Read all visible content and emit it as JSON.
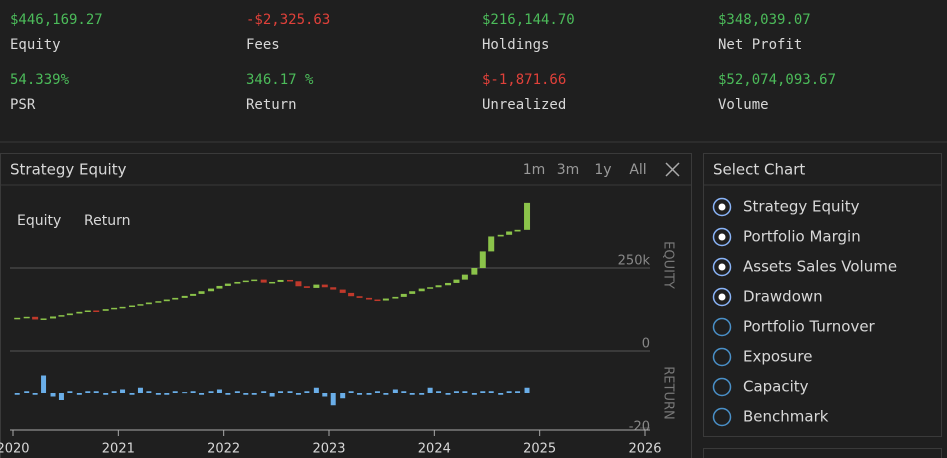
{
  "stats": [
    {
      "value": "$446,169.27",
      "label": "Equity",
      "color": "#4cbb5a"
    },
    {
      "value": "-$2,325.63",
      "label": "Fees",
      "color": "#e0413a"
    },
    {
      "value": "$216,144.70",
      "label": "Holdings",
      "color": "#4cbb5a"
    },
    {
      "value": "$348,039.07",
      "label": "Net Profit",
      "color": "#4cbb5a"
    },
    {
      "value": "54.339%",
      "label": "PSR",
      "color": "#4cbb5a"
    },
    {
      "value": "346.17 %",
      "label": "Return",
      "color": "#4cbb5a"
    },
    {
      "value": "$-1,871.66",
      "label": "Unrealized",
      "color": "#e0413a"
    },
    {
      "value": "$52,074,093.67",
      "label": "Volume",
      "color": "#4cbb5a"
    }
  ],
  "chart_data": {
    "type": "candlestick",
    "title": "Strategy Equity",
    "range_buttons": [
      "1m",
      "3m",
      "1y",
      "All"
    ],
    "x": [
      2020.04,
      2020.13,
      2020.21,
      2020.29,
      2020.38,
      2020.46,
      2020.54,
      2020.63,
      2020.71,
      2020.79,
      2020.88,
      2020.96,
      2021.04,
      2021.13,
      2021.21,
      2021.29,
      2021.38,
      2021.46,
      2021.54,
      2021.63,
      2021.71,
      2021.79,
      2021.88,
      2021.96,
      2022.04,
      2022.13,
      2022.21,
      2022.29,
      2022.38,
      2022.46,
      2022.54,
      2022.63,
      2022.71,
      2022.79,
      2022.88,
      2022.96,
      2023.04,
      2023.13,
      2023.21,
      2023.29,
      2023.38,
      2023.46,
      2023.54,
      2023.63,
      2023.71,
      2023.79,
      2023.88,
      2023.96,
      2024.04,
      2024.13,
      2024.21,
      2024.29,
      2024.38,
      2024.46,
      2024.54,
      2024.63,
      2024.71,
      2024.79,
      2024.88
    ],
    "xlim": [
      2020,
      2026
    ],
    "xticks": [
      2020,
      2021,
      2022,
      2023,
      2024,
      2025,
      2026
    ],
    "series": [
      {
        "name": "Equity",
        "axis_label": "EQUITY",
        "up_color": "#8bc34a",
        "down_color": "#c0392b",
        "open": [
          98000,
          100000,
          103000,
          95000,
          98000,
          104000,
          108000,
          113000,
          118000,
          122000,
          121000,
          126000,
          130000,
          133000,
          137000,
          141000,
          146000,
          150000,
          155000,
          160000,
          166000,
          172000,
          180000,
          188000,
          196000,
          203000,
          208000,
          212000,
          215000,
          206000,
          208000,
          214000,
          210000,
          195000,
          190000,
          200000,
          192000,
          185000,
          175000,
          165000,
          160000,
          155000,
          152000,
          158000,
          163000,
          172000,
          180000,
          188000,
          192000,
          198000,
          205000,
          215000,
          230000,
          250000,
          300000,
          345000,
          350000,
          360000,
          365000
        ],
        "close": [
          100000,
          103000,
          95000,
          98000,
          104000,
          108000,
          113000,
          118000,
          122000,
          121000,
          126000,
          130000,
          133000,
          137000,
          141000,
          146000,
          150000,
          155000,
          160000,
          166000,
          172000,
          180000,
          188000,
          196000,
          203000,
          208000,
          212000,
          215000,
          206000,
          208000,
          214000,
          210000,
          195000,
          190000,
          200000,
          192000,
          185000,
          175000,
          165000,
          160000,
          155000,
          152000,
          158000,
          163000,
          172000,
          180000,
          188000,
          192000,
          198000,
          205000,
          215000,
          230000,
          250000,
          300000,
          345000,
          350000,
          360000,
          365000,
          446169
        ]
      },
      {
        "name": "Return",
        "axis_label": "RETURN",
        "axis": "y2",
        "color": "#6aaee8",
        "values": [
          -1,
          1,
          -1,
          10,
          -2,
          -4,
          1,
          -1,
          1,
          1,
          -1,
          1,
          2,
          -1,
          3,
          1,
          -1,
          -1,
          1,
          0.5,
          1,
          -1,
          1,
          2,
          -1,
          1,
          -1,
          -1,
          1,
          -2,
          1,
          1,
          -1,
          1,
          3,
          -2,
          -7,
          -3,
          1,
          -1,
          -1,
          1,
          -1,
          2,
          1,
          -1,
          -1,
          3,
          1,
          -1,
          1,
          1,
          -1,
          1,
          1,
          -1,
          1,
          1,
          3
        ]
      }
    ],
    "ylim": [
      0,
      500000
    ],
    "yticks": [
      0,
      {
        "value": 250000,
        "label": "250k"
      }
    ],
    "y2lim": [
      -20,
      20
    ],
    "y2ticks": [
      -20
    ]
  },
  "select_chart": {
    "title": "Select Chart",
    "options": [
      {
        "label": "Strategy Equity",
        "selected": true
      },
      {
        "label": "Portfolio Margin",
        "selected": true
      },
      {
        "label": "Assets Sales Volume",
        "selected": true
      },
      {
        "label": "Drawdown",
        "selected": true
      },
      {
        "label": "Portfolio Turnover",
        "selected": false
      },
      {
        "label": "Exposure",
        "selected": false
      },
      {
        "label": "Capacity",
        "selected": false
      },
      {
        "label": "Benchmark",
        "selected": false
      }
    ]
  }
}
